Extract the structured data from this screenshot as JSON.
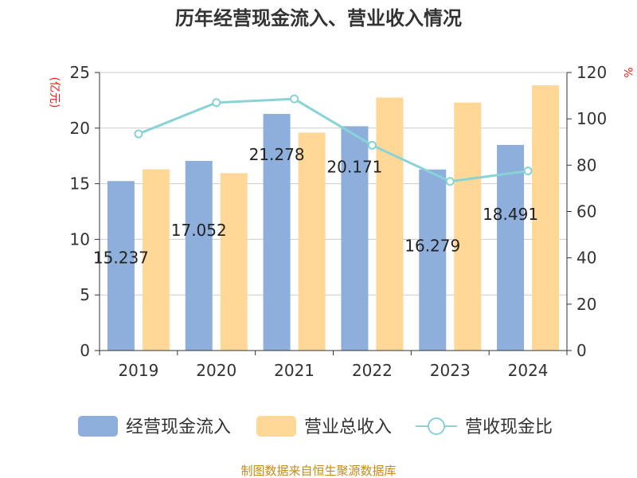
{
  "chart_data": {
    "type": "bar",
    "title": "历年经营现金流入、营业收入情况",
    "y_left_label": "(亿元)",
    "y_right_label": "%",
    "categories": [
      "2019",
      "2020",
      "2021",
      "2022",
      "2023",
      "2024"
    ],
    "y_left_range": [
      0,
      25
    ],
    "y_left_ticks": [
      "0",
      "5",
      "10",
      "15",
      "20",
      "25"
    ],
    "y_right_range": [
      0,
      120
    ],
    "y_right_ticks": [
      "0",
      "20",
      "40",
      "60",
      "80",
      "100",
      "120"
    ],
    "grid": true,
    "legend_position": "bottom",
    "series": [
      {
        "name": "经营现金流入",
        "type": "bar",
        "axis": "left",
        "color": "#8eaedc",
        "values": [
          15.237,
          17.052,
          21.278,
          20.171,
          16.279,
          18.491
        ],
        "data_labels": [
          "15.237",
          "17.052",
          "21.278",
          "20.171",
          "16.279",
          "18.491"
        ]
      },
      {
        "name": "营业总收入",
        "type": "bar",
        "axis": "left",
        "color": "#ffd898",
        "values": [
          16.3,
          15.95,
          19.6,
          22.75,
          22.3,
          23.85
        ]
      },
      {
        "name": "营收现金比",
        "type": "line",
        "axis": "right",
        "color": "#88d3d6",
        "values": [
          93.5,
          107,
          108.6,
          88.6,
          73,
          77.5
        ]
      }
    ],
    "footer": "制图数据来自恒生聚源数据库"
  }
}
